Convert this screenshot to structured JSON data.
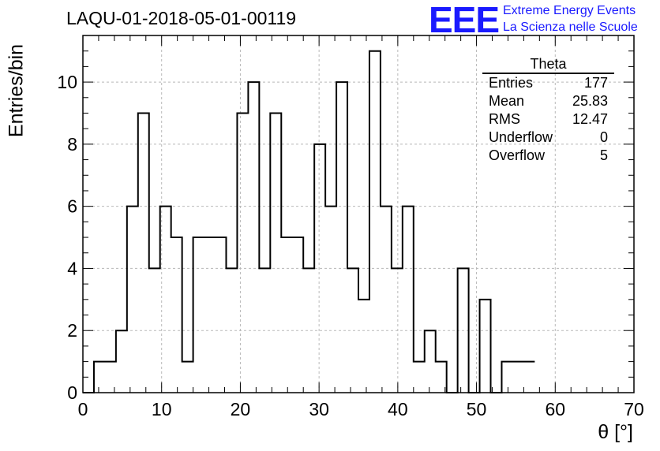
{
  "header": {
    "run_title": "LAQU-01-2018-05-01-00119",
    "logo_mark": "EEE",
    "logo_line1": "Extreme Energy Events",
    "logo_line2": "La Scienza nelle Scuole",
    "logo_color": "#1a1aff"
  },
  "stats_box": {
    "title": "Theta",
    "rows": [
      {
        "label": "Entries",
        "value": "177"
      },
      {
        "label": "Mean",
        "value": "25.83"
      },
      {
        "label": "RMS",
        "value": "12.47"
      },
      {
        "label": "Underflow",
        "value": "0"
      },
      {
        "label": "Overflow",
        "value": "5"
      }
    ]
  },
  "chart_data": {
    "type": "bar",
    "histogram": true,
    "title": "LAQU-01-2018-05-01-00119",
    "xlabel": "θ [°]",
    "ylabel": "Entries/bin",
    "xlim": [
      0,
      70
    ],
    "ylim": [
      0,
      11.5
    ],
    "bin_edges": [
      0,
      1.4,
      2.8,
      4.2,
      5.6,
      7.0,
      8.4,
      9.8,
      11.2,
      12.6,
      14.0,
      15.4,
      16.8,
      18.2,
      19.6,
      21.0,
      22.4,
      23.8,
      25.2,
      26.6,
      28.0,
      29.4,
      30.8,
      32.2,
      33.6,
      35.0,
      36.4,
      37.8,
      39.2,
      40.6,
      42.0,
      43.4,
      44.8,
      46.2,
      47.6,
      49.0,
      50.4,
      51.8,
      53.2,
      54.6,
      56.0,
      57.4
    ],
    "values": [
      0,
      1,
      1,
      2,
      6,
      9,
      4,
      6,
      5,
      1,
      5,
      5,
      5,
      4,
      9,
      10,
      4,
      9,
      5,
      5,
      4,
      8,
      6,
      10,
      4,
      3,
      11,
      6,
      4,
      6,
      1,
      2,
      1,
      0,
      4,
      0,
      3,
      0,
      1,
      1,
      1
    ],
    "x_ticks": [
      0,
      10,
      20,
      30,
      40,
      50,
      60,
      70
    ],
    "y_ticks": [
      0,
      2,
      4,
      6,
      8,
      10
    ],
    "grid": true,
    "line_color": "#000000"
  }
}
